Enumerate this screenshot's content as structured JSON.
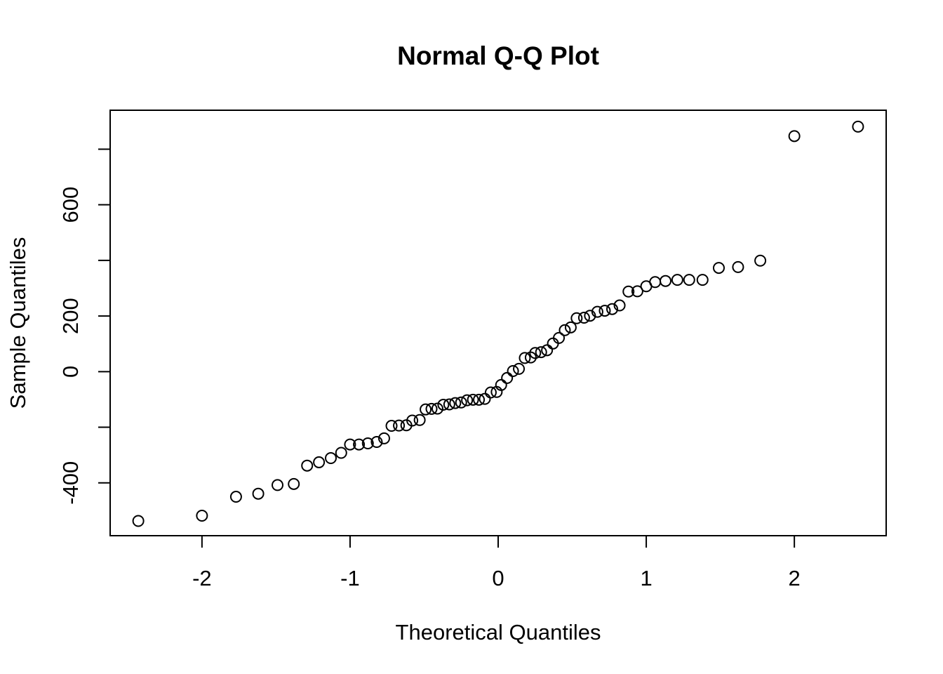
{
  "chart_data": {
    "type": "scatter",
    "title": "Normal Q-Q Plot",
    "xlabel": "Theoretical Quantiles",
    "ylabel": "Sample Quantiles",
    "xlim": [
      -2.62,
      2.62
    ],
    "ylim": [
      -590,
      940
    ],
    "x_ticks": [
      -2,
      -1,
      0,
      1,
      2
    ],
    "x_tick_labels": [
      "-2",
      "-1",
      "0",
      "1",
      "2"
    ],
    "y_ticks": [
      -400,
      -200,
      0,
      200,
      400,
      600,
      800
    ],
    "y_tick_labels": [
      "-400",
      "",
      "0",
      "200",
      "",
      "600",
      ""
    ],
    "grid": false,
    "marker": "open-circle",
    "points": [
      {
        "x": -2.43,
        "y": -537
      },
      {
        "x": -2.0,
        "y": -518
      },
      {
        "x": -1.77,
        "y": -450
      },
      {
        "x": -1.62,
        "y": -439
      },
      {
        "x": -1.49,
        "y": -408
      },
      {
        "x": -1.38,
        "y": -404
      },
      {
        "x": -1.29,
        "y": -338
      },
      {
        "x": -1.21,
        "y": -326
      },
      {
        "x": -1.13,
        "y": -311
      },
      {
        "x": -1.06,
        "y": -292
      },
      {
        "x": -1.0,
        "y": -262
      },
      {
        "x": -0.94,
        "y": -262
      },
      {
        "x": -0.88,
        "y": -258
      },
      {
        "x": -0.82,
        "y": -253
      },
      {
        "x": -0.77,
        "y": -240
      },
      {
        "x": -0.72,
        "y": -195
      },
      {
        "x": -0.67,
        "y": -194
      },
      {
        "x": -0.62,
        "y": -193
      },
      {
        "x": -0.58,
        "y": -176
      },
      {
        "x": -0.53,
        "y": -174
      },
      {
        "x": -0.49,
        "y": -136
      },
      {
        "x": -0.45,
        "y": -134
      },
      {
        "x": -0.41,
        "y": -133
      },
      {
        "x": -0.37,
        "y": -119
      },
      {
        "x": -0.33,
        "y": -118
      },
      {
        "x": -0.29,
        "y": -113
      },
      {
        "x": -0.25,
        "y": -111
      },
      {
        "x": -0.21,
        "y": -103
      },
      {
        "x": -0.17,
        "y": -101
      },
      {
        "x": -0.13,
        "y": -101
      },
      {
        "x": -0.09,
        "y": -98
      },
      {
        "x": -0.05,
        "y": -75
      },
      {
        "x": -0.01,
        "y": -73
      },
      {
        "x": 0.02,
        "y": -48
      },
      {
        "x": 0.06,
        "y": -23
      },
      {
        "x": 0.1,
        "y": 2
      },
      {
        "x": 0.14,
        "y": 10
      },
      {
        "x": 0.18,
        "y": 49
      },
      {
        "x": 0.22,
        "y": 51
      },
      {
        "x": 0.25,
        "y": 67
      },
      {
        "x": 0.29,
        "y": 70
      },
      {
        "x": 0.33,
        "y": 77
      },
      {
        "x": 0.37,
        "y": 101
      },
      {
        "x": 0.41,
        "y": 121
      },
      {
        "x": 0.45,
        "y": 149
      },
      {
        "x": 0.49,
        "y": 159
      },
      {
        "x": 0.53,
        "y": 192
      },
      {
        "x": 0.58,
        "y": 194
      },
      {
        "x": 0.62,
        "y": 201
      },
      {
        "x": 0.67,
        "y": 215
      },
      {
        "x": 0.72,
        "y": 219
      },
      {
        "x": 0.77,
        "y": 225
      },
      {
        "x": 0.82,
        "y": 238
      },
      {
        "x": 0.88,
        "y": 288
      },
      {
        "x": 0.94,
        "y": 289
      },
      {
        "x": 1.0,
        "y": 307
      },
      {
        "x": 1.06,
        "y": 322
      },
      {
        "x": 1.13,
        "y": 326
      },
      {
        "x": 1.21,
        "y": 330
      },
      {
        "x": 1.29,
        "y": 330
      },
      {
        "x": 1.38,
        "y": 330
      },
      {
        "x": 1.49,
        "y": 373
      },
      {
        "x": 1.62,
        "y": 376
      },
      {
        "x": 1.77,
        "y": 399
      },
      {
        "x": 2.0,
        "y": 847
      },
      {
        "x": 2.43,
        "y": 881
      }
    ]
  }
}
